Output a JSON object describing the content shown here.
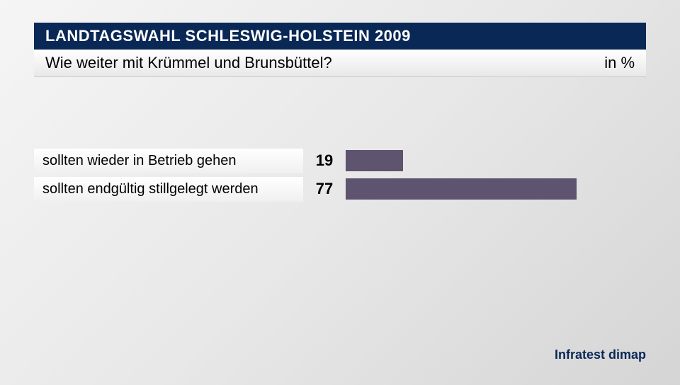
{
  "header": {
    "title": "LANDTAGSWAHL SCHLESWIG-HOLSTEIN 2009",
    "title_fontsize": 22,
    "title_color": "#ffffff",
    "title_bg": "#0a2856"
  },
  "subtitle": {
    "text": "Wie weiter mit Krümmel und Brunsbüttel?",
    "unit": "in %",
    "fontsize": 22,
    "color": "#000000"
  },
  "chart": {
    "type": "bar",
    "orientation": "horizontal",
    "max_value": 100,
    "bar_color": "#5e5470",
    "label_fontsize": 20,
    "value_fontsize": 22,
    "rows": [
      {
        "label": "sollten wieder in Betrieb gehen",
        "value": 19
      },
      {
        "label": "sollten endgültig stillgelegt werden",
        "value": 77
      }
    ],
    "label_bg": "#ffffff",
    "background_gradient": [
      "#f5f5f5",
      "#d5d5d5"
    ]
  },
  "source": {
    "text": "Infratest dimap",
    "fontsize": 18,
    "color": "#0a2856"
  }
}
